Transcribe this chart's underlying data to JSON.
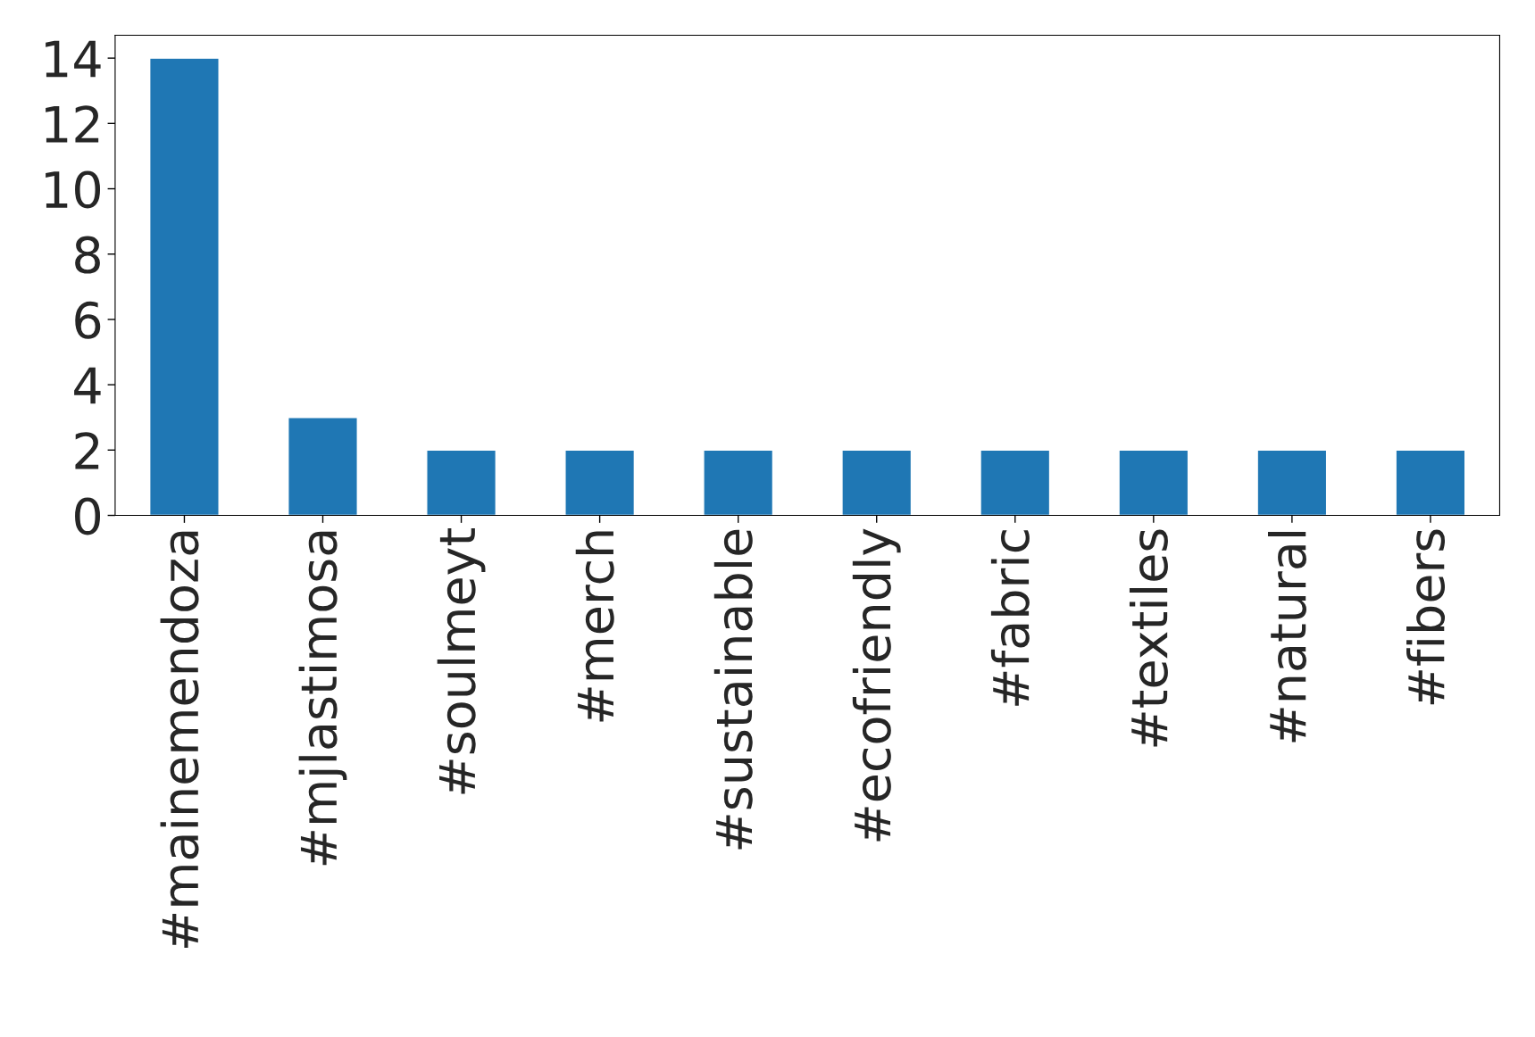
{
  "chart_data": {
    "type": "bar",
    "categories": [
      "#mainemendoza",
      "#mjlastimosa",
      "#soulmeyt",
      "#merch",
      "#sustainable",
      "#ecofriendly",
      "#fabric",
      "#textiles",
      "#natural",
      "#fibers"
    ],
    "values": [
      14,
      3,
      2,
      2,
      2,
      2,
      2,
      2,
      2,
      2
    ],
    "color": "#1f77b4",
    "ylim": [
      0,
      14.7
    ],
    "yticks": [
      0,
      2,
      4,
      6,
      8,
      10,
      12,
      14
    ],
    "grid": false,
    "legend": false
  }
}
